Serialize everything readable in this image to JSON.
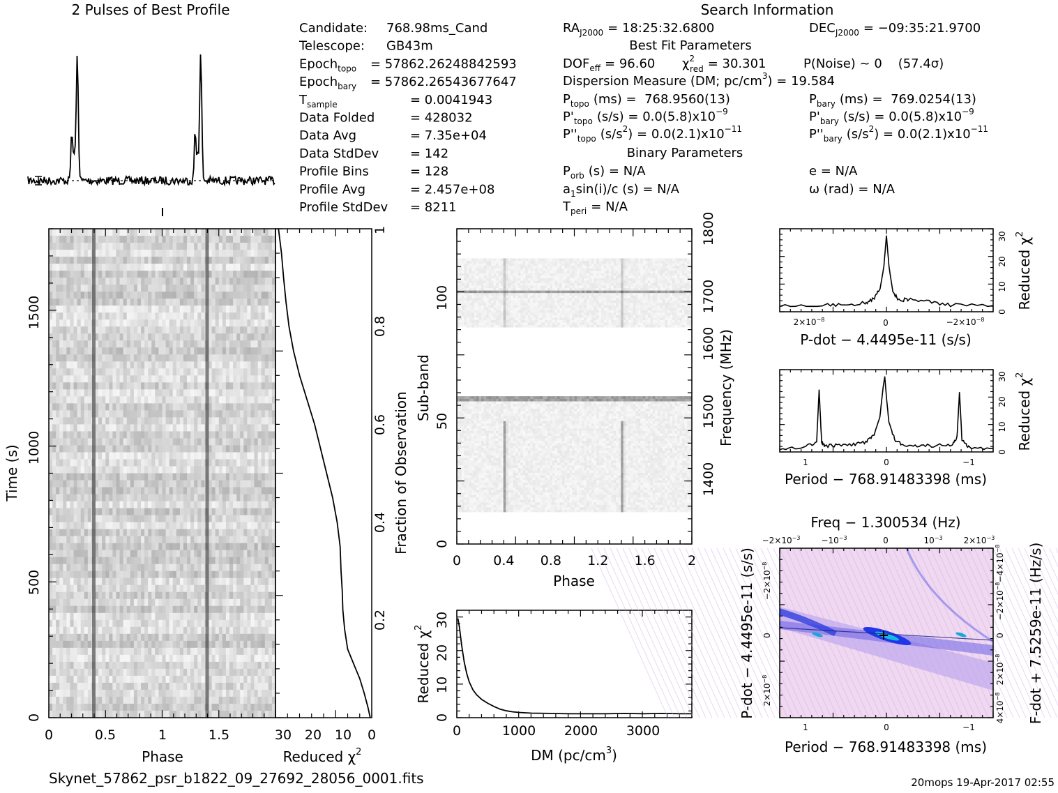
{
  "profile_title": "2 Pulses of Best Profile",
  "search_title": "Search Information",
  "filename": "Skynet_57862_psr_b1822_09_27692_28056_0001.fits",
  "footer": "20mops 19-Apr-2017 02:55",
  "info_left": [
    {
      "label": "Candidate:",
      "value": "768.98ms_Cand"
    },
    {
      "label": "Telescope:",
      "value": "GB43m"
    },
    {
      "label": "Epoch",
      "sub": "topo",
      "value": "= 57862.26248842593"
    },
    {
      "label": "Epoch",
      "sub": "bary",
      "value": "= 57862.26543677647"
    },
    {
      "label": "T",
      "sub": "sample",
      "value": "= 0.0041943"
    },
    {
      "label": "Data Folded",
      "value": "= 428032"
    },
    {
      "label": "Data Avg",
      "value": "= 7.35e+04"
    },
    {
      "label": "Data StdDev",
      "value": "= 142"
    },
    {
      "label": "Profile Bins",
      "value": "= 128"
    },
    {
      "label": "Profile Avg",
      "value": "= 2.457e+08"
    },
    {
      "label": "Profile StdDev",
      "value": "= 8211"
    }
  ],
  "info_mid": {
    "ra": {
      "label": "RA",
      "sub": "J2000",
      "value": "= 18:25:32.6800"
    },
    "dec": {
      "label": "DEC",
      "sub": "J2000",
      "value": "= −09:35:21.9700"
    },
    "best_fit_title": "Best Fit Parameters",
    "dof": {
      "label": "DOF",
      "sub": "eff",
      "value": "= 96.60"
    },
    "chi2": {
      "label": "χ",
      "sup": "2",
      "sub": "red",
      "value": "= 30.301"
    },
    "pnoise": "P(Noise) ~ 0    (57.4σ)",
    "dm": {
      "text": "Dispersion Measure (DM; pc/cm",
      "sup": "3",
      "tail": ") = 19.584"
    },
    "ptopo": {
      "label": "P",
      "sub": "topo",
      "value": "(ms) =  768.9560(13)"
    },
    "pbary": {
      "label": "P",
      "sub": "bary",
      "value": "(ms) =  769.0254(13)"
    },
    "pdtopo": {
      "label": "P'",
      "sub": "topo",
      "value": "(s/s) = 0.0(5.8)x10",
      "sup": "−9"
    },
    "pdbary": {
      "label": "P'",
      "sub": "bary",
      "value": "(s/s) = 0.0(5.8)x10",
      "sup": "−9"
    },
    "pddtopo": {
      "label": "P''",
      "sub": "topo",
      "value": "(s/s",
      "sup1": "2",
      "tail": ") = 0.0(2.1)x10",
      "sup": "−11"
    },
    "pddbary": {
      "label": "P''",
      "sub": "bary",
      "value": "(s/s",
      "sup1": "2",
      "tail": ") = 0.0(2.1)x10",
      "sup": "−11"
    },
    "binary_title": "Binary Parameters",
    "porb": {
      "label": "P",
      "sub": "orb",
      "value": "(s) = N/A"
    },
    "ecc": "e = N/A",
    "a1": {
      "label": "a",
      "sub": "1",
      "value": "sin(i)/c (s) = N/A"
    },
    "omega": "ω (rad) = N/A",
    "tperi": {
      "label": "T",
      "sub": "peri",
      "value": "= N/A"
    }
  },
  "chart_data": [
    {
      "name": "profile",
      "type": "line",
      "title": "2 Pulses of Best Profile",
      "x": "phase 0-2",
      "peaks_phase": [
        0.4,
        1.4
      ]
    },
    {
      "name": "time-phase",
      "type": "heatmap",
      "xlabel": "Phase",
      "ylabel": "Time (s)",
      "xlim": [
        0,
        2
      ],
      "ylim": [
        0,
        1790
      ],
      "xticks": [
        "0",
        "0.5",
        "1",
        "1.5"
      ],
      "yticks": [
        "0",
        "500",
        "1000",
        "1500"
      ],
      "pulse_phase": [
        0.4,
        1.4
      ]
    },
    {
      "name": "time-chi2",
      "type": "line",
      "xlabel": "Reduced χ",
      "xlabel_sup": "2",
      "ylabel": "Fraction of Observation",
      "xlim": [
        32,
        0
      ],
      "ylim": [
        0,
        1
      ],
      "xticks": [
        "30",
        "20",
        "10",
        "0"
      ],
      "yticks": [
        "0.2",
        "0.4",
        "0.6",
        "0.8",
        "1"
      ],
      "x": [
        0.5,
        1.2,
        2.5,
        4,
        6,
        8,
        9,
        9.6,
        9.8,
        10.2,
        10.5,
        11.5,
        13,
        15,
        17,
        19,
        21.5,
        24,
        26,
        27.5,
        28.5,
        29.3,
        30,
        31
      ],
      "y": [
        0.0,
        0.02,
        0.05,
        0.08,
        0.11,
        0.14,
        0.18,
        0.22,
        0.26,
        0.3,
        0.35,
        0.4,
        0.45,
        0.5,
        0.55,
        0.6,
        0.65,
        0.7,
        0.75,
        0.8,
        0.85,
        0.9,
        0.95,
        1.0
      ]
    },
    {
      "name": "subband-phase",
      "type": "heatmap",
      "xlabel": "Phase",
      "ylabel": "Sub-band",
      "y2label": "Frequency (MHz)",
      "xlim": [
        0,
        2
      ],
      "ylim": [
        0,
        128
      ],
      "y2lim": [
        1335,
        1800
      ],
      "xticks": [
        "0",
        "0.4",
        "0.8",
        "1.2",
        "1.6",
        "2"
      ],
      "yticks": [
        "0",
        "50",
        "100"
      ],
      "y2ticks": [
        "1400",
        "1500",
        "1600",
        "1700",
        "1800"
      ],
      "pulse_phase": [
        0.4,
        1.4
      ],
      "masked_subbands": [
        [
          0,
          13
        ],
        [
          60,
          88
        ],
        [
          116,
          128
        ]
      ],
      "bright_subbands": [
        58,
        59,
        102
      ]
    },
    {
      "name": "dm-chi2",
      "type": "line",
      "xlabel": "DM (pc/cm",
      "xlabel_sup": "3",
      "ylabel": "Reduced χ",
      "ylabel_sup": "2",
      "xlim": [
        0,
        3780
      ],
      "ylim": [
        0,
        33
      ],
      "xticks": [
        "0",
        "1000",
        "2000",
        "3000"
      ],
      "yticks": [
        "0",
        "10",
        "20",
        "30"
      ],
      "x": [
        0,
        19.6,
        40,
        80,
        120,
        160,
        200,
        260,
        320,
        400,
        500,
        600,
        700,
        800,
        900,
        1000,
        1200,
        1500,
        1800,
        2100,
        2400,
        2700,
        3000,
        3300,
        3600,
        3780
      ],
      "y": [
        30.3,
        30.3,
        28,
        22,
        17,
        13.5,
        11,
        8.5,
        7,
        5.6,
        4.4,
        3.4,
        2.6,
        2.1,
        1.8,
        1.6,
        1.4,
        1.3,
        1.2,
        1.2,
        1.2,
        1.3,
        1.2,
        1.3,
        1.2,
        1.2
      ]
    },
    {
      "name": "pdot-chi2",
      "type": "line",
      "xlabel": "P-dot − 4.4495e-11 (s/s)",
      "ylabel": "Reduced χ",
      "ylabel_sup": "2",
      "xlim": [
        2.5e-08,
        -2.5e-08
      ],
      "ylim": [
        0,
        33
      ],
      "xticks": [
        "2×10",
        "0",
        "−2×10"
      ],
      "xtick_sup": "−8",
      "yticks": [
        "0",
        "10",
        "20",
        "30"
      ],
      "x": [
        2.5e-08,
        1.5e-08,
        1e-08,
        5e-09,
        3e-09,
        1.5e-09,
        6e-10,
        0,
        -6e-10,
        -1.5e-09,
        -3e-09,
        -5e-09,
        -1e-08,
        -1.5e-08,
        -2.5e-08
      ],
      "y": [
        2.5,
        2.6,
        2.8,
        3.5,
        5,
        9,
        18,
        30.3,
        18,
        8,
        4.5,
        5,
        4,
        2.7,
        2.5
      ]
    },
    {
      "name": "period-chi2",
      "type": "line",
      "xlabel": "Period − 768.91483398 (ms)",
      "ylabel": "Reduced χ",
      "ylabel_sup": "2",
      "xlim": [
        1.3,
        -1.3
      ],
      "ylim": [
        0,
        33
      ],
      "xticks": [
        "1",
        "0",
        "−1"
      ],
      "yticks": [
        "0",
        "10",
        "20",
        "30"
      ],
      "x": [
        1.3,
        1.0,
        0.85,
        0.82,
        0.79,
        0.75,
        0.6,
        0.4,
        0.25,
        0.15,
        0.08,
        0.04,
        0.02,
        0.0,
        -0.03,
        -0.1,
        -0.2,
        -0.4,
        -0.6,
        -0.8,
        -0.86,
        -0.89,
        -0.92,
        -1.0,
        -1.3
      ],
      "y": [
        1.5,
        2.0,
        4,
        25,
        4,
        2.5,
        2.5,
        3,
        4,
        7,
        14,
        26,
        30.3,
        22,
        12,
        5,
        3,
        2.5,
        2.5,
        3,
        6,
        24,
        5,
        2,
        1.5
      ]
    },
    {
      "name": "pdot-period",
      "type": "heatmap",
      "title": "Freq − 1.300534 (Hz)",
      "xlabel": "Period − 768.91483398 (ms)",
      "ylabel": "P-dot − 4.4495e-11 (s/s)",
      "y2label": "F-dot + 7.5259e-11 (Hz/s)",
      "xlim": [
        1.3,
        -1.3
      ],
      "xticks": [
        "1",
        "0",
        "−1"
      ],
      "x2ticks": [
        "−2×10",
        "−10",
        "0",
        "10",
        "2×10"
      ],
      "x2tick_sup": "−3",
      "yticks": [
        "−2×10",
        "0",
        "2×10"
      ],
      "ytick_sup": "−8",
      "y2ticks": [
        "4×10",
        "2×10",
        "0",
        "−2×10",
        "−4×10"
      ],
      "y2tick_sup": "−8",
      "best_fit": [
        0,
        0
      ]
    }
  ]
}
